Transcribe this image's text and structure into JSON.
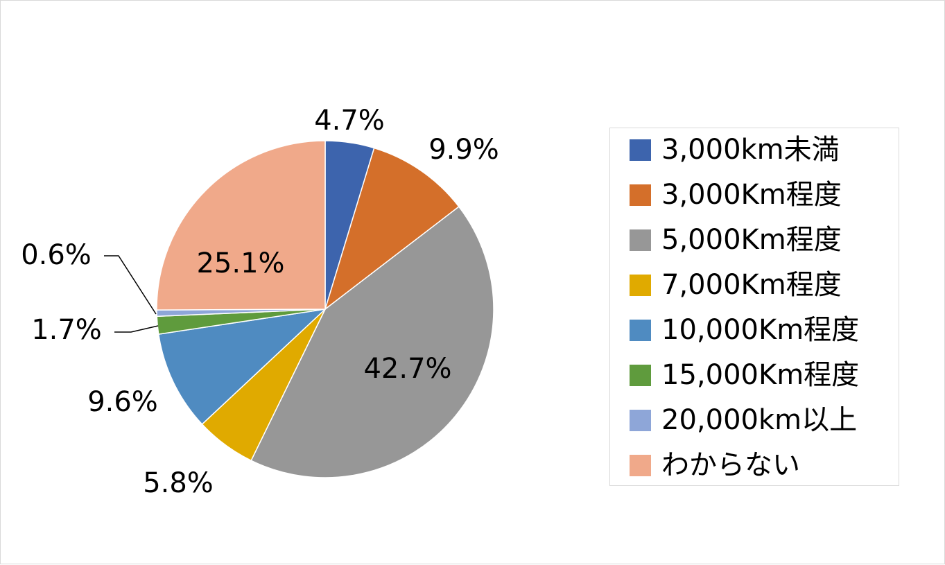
{
  "chart_data": {
    "type": "pie",
    "categories": [
      "3,000km未満",
      "3,000Km程度",
      "5,000Km程度",
      "7,000Km程度",
      "10,000Km程度",
      "15,000Km程度",
      "20,000km以上",
      "わからない"
    ],
    "values": [
      4.7,
      9.9,
      42.7,
      5.8,
      9.6,
      1.7,
      0.6,
      25.1
    ],
    "value_labels": [
      "4.7%",
      "9.9%",
      "42.7%",
      "5.8%",
      "9.6%",
      "1.7%",
      "0.6%",
      "25.1%"
    ],
    "colors": [
      "#3d64ad",
      "#d46f2a",
      "#979797",
      "#e0aa00",
      "#4f8bc1",
      "#5f9b3d",
      "#8ea6d8",
      "#f0a98a"
    ],
    "unit": "%",
    "start_angle": "12 o'clock",
    "direction": "clockwise",
    "legend_position": "right",
    "title": ""
  }
}
